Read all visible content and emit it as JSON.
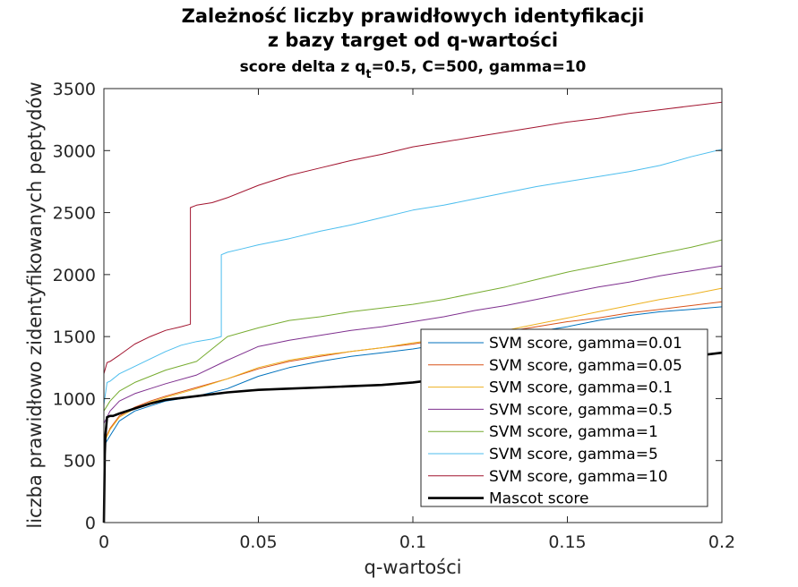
{
  "chart_data": {
    "type": "line",
    "title_lines": [
      "Zależność liczby prawidłowych identyfikacji",
      "z bazy target od q-wartości"
    ],
    "subtitle": {
      "prefix": "score delta z q",
      "subscript": "t",
      "suffix": "=0.5, C=500, gamma=10"
    },
    "xlabel": "q-wartości",
    "ylabel": "liczba prawidłowo zidentyfikowanych peptydów",
    "xlim": [
      0,
      0.2
    ],
    "ylim": [
      0,
      3500
    ],
    "xticks": [
      0,
      0.05,
      0.1,
      0.15,
      0.2
    ],
    "xtick_labels": [
      "0",
      "0.05",
      "0.1",
      "0.15",
      "0.2"
    ],
    "yticks": [
      0,
      500,
      1000,
      1500,
      2000,
      2500,
      3000,
      3500
    ],
    "ytick_labels": [
      "0",
      "500",
      "1000",
      "1500",
      "2000",
      "2500",
      "3000",
      "3500"
    ],
    "grid": false,
    "legend_position": "bottom-right",
    "series": [
      {
        "name": "SVM score, gamma=0.01",
        "color": "#0072bd",
        "width": 1,
        "x": [
          0,
          0.002,
          0.005,
          0.01,
          0.015,
          0.02,
          0.03,
          0.04,
          0.05,
          0.06,
          0.07,
          0.08,
          0.09,
          0.1,
          0.11,
          0.12,
          0.13,
          0.14,
          0.15,
          0.16,
          0.17,
          0.18,
          0.19,
          0.2
        ],
        "y": [
          620,
          700,
          820,
          900,
          940,
          980,
          1020,
          1080,
          1180,
          1250,
          1300,
          1340,
          1370,
          1400,
          1440,
          1470,
          1500,
          1540,
          1580,
          1630,
          1670,
          1700,
          1720,
          1740
        ]
      },
      {
        "name": "SVM score, gamma=0.05",
        "color": "#d95319",
        "width": 1,
        "x": [
          0,
          0.002,
          0.005,
          0.01,
          0.015,
          0.02,
          0.03,
          0.04,
          0.05,
          0.06,
          0.07,
          0.08,
          0.09,
          0.1,
          0.11,
          0.12,
          0.13,
          0.14,
          0.15,
          0.16,
          0.17,
          0.18,
          0.19,
          0.2
        ],
        "y": [
          650,
          760,
          860,
          930,
          980,
          1020,
          1090,
          1160,
          1240,
          1300,
          1340,
          1380,
          1410,
          1440,
          1480,
          1510,
          1540,
          1580,
          1620,
          1650,
          1690,
          1720,
          1750,
          1780
        ]
      },
      {
        "name": "SVM score, gamma=0.1",
        "color": "#edb120",
        "width": 1,
        "x": [
          0,
          0.002,
          0.005,
          0.01,
          0.015,
          0.02,
          0.03,
          0.04,
          0.05,
          0.06,
          0.07,
          0.08,
          0.09,
          0.1,
          0.11,
          0.12,
          0.13,
          0.14,
          0.15,
          0.16,
          0.17,
          0.18,
          0.19,
          0.2
        ],
        "y": [
          640,
          750,
          850,
          920,
          970,
          1010,
          1080,
          1160,
          1250,
          1310,
          1350,
          1380,
          1410,
          1450,
          1480,
          1510,
          1550,
          1600,
          1650,
          1700,
          1750,
          1800,
          1840,
          1890
        ]
      },
      {
        "name": "SVM score, gamma=0.5",
        "color": "#7e2f8e",
        "width": 1,
        "x": [
          0,
          0.002,
          0.005,
          0.01,
          0.015,
          0.02,
          0.03,
          0.04,
          0.05,
          0.06,
          0.07,
          0.08,
          0.09,
          0.1,
          0.11,
          0.12,
          0.13,
          0.14,
          0.15,
          0.16,
          0.17,
          0.18,
          0.19,
          0.2
        ],
        "y": [
          800,
          900,
          980,
          1040,
          1080,
          1120,
          1190,
          1310,
          1420,
          1470,
          1510,
          1550,
          1580,
          1620,
          1660,
          1710,
          1750,
          1800,
          1850,
          1900,
          1940,
          1990,
          2030,
          2070
        ]
      },
      {
        "name": "SVM score, gamma=1",
        "color": "#77ac30",
        "width": 1,
        "x": [
          0,
          0.002,
          0.005,
          0.01,
          0.015,
          0.02,
          0.03,
          0.04,
          0.05,
          0.06,
          0.07,
          0.08,
          0.09,
          0.1,
          0.11,
          0.12,
          0.13,
          0.14,
          0.15,
          0.16,
          0.17,
          0.18,
          0.19,
          0.2
        ],
        "y": [
          900,
          980,
          1060,
          1130,
          1180,
          1230,
          1300,
          1500,
          1570,
          1630,
          1660,
          1700,
          1730,
          1760,
          1800,
          1850,
          1900,
          1960,
          2020,
          2070,
          2120,
          2170,
          2220,
          2280
        ]
      },
      {
        "name": "SVM score, gamma=5",
        "color": "#4dbeee",
        "width": 1,
        "x": [
          0,
          0.001,
          0.002,
          0.005,
          0.01,
          0.015,
          0.02,
          0.025,
          0.03,
          0.035,
          0.038,
          0.038,
          0.04,
          0.045,
          0.05,
          0.06,
          0.07,
          0.08,
          0.09,
          0.1,
          0.11,
          0.12,
          0.13,
          0.14,
          0.15,
          0.16,
          0.17,
          0.18,
          0.19,
          0.2
        ],
        "y": [
          950,
          1130,
          1140,
          1200,
          1260,
          1320,
          1380,
          1430,
          1460,
          1480,
          1500,
          2160,
          2180,
          2210,
          2240,
          2290,
          2350,
          2400,
          2460,
          2520,
          2560,
          2610,
          2660,
          2710,
          2750,
          2790,
          2830,
          2880,
          2950,
          3010
        ]
      },
      {
        "name": "SVM score, gamma=10",
        "color": "#a2142f",
        "width": 1,
        "x": [
          0,
          0.001,
          0.002,
          0.005,
          0.01,
          0.015,
          0.02,
          0.025,
          0.028,
          0.028,
          0.03,
          0.035,
          0.04,
          0.05,
          0.06,
          0.07,
          0.08,
          0.09,
          0.1,
          0.11,
          0.12,
          0.13,
          0.14,
          0.15,
          0.16,
          0.17,
          0.18,
          0.19,
          0.2
        ],
        "y": [
          1200,
          1290,
          1300,
          1350,
          1440,
          1500,
          1550,
          1580,
          1600,
          2540,
          2560,
          2580,
          2620,
          2720,
          2800,
          2860,
          2920,
          2970,
          3030,
          3070,
          3110,
          3150,
          3190,
          3230,
          3260,
          3300,
          3330,
          3360,
          3390
        ]
      },
      {
        "name": "Mascot score",
        "color": "#000000",
        "width": 2.6,
        "x": [
          0,
          0.0003,
          0.0005,
          0.001,
          0.002,
          0.003,
          0.005,
          0.01,
          0.015,
          0.02,
          0.03,
          0.04,
          0.05,
          0.06,
          0.07,
          0.08,
          0.09,
          0.1,
          0.11,
          0.12,
          0.13,
          0.14,
          0.15,
          0.16,
          0.17,
          0.18,
          0.19,
          0.2
        ],
        "y": [
          0,
          550,
          700,
          850,
          860,
          860,
          880,
          920,
          960,
          990,
          1020,
          1050,
          1070,
          1080,
          1090,
          1100,
          1110,
          1130,
          1160,
          1190,
          1210,
          1240,
          1260,
          1280,
          1300,
          1320,
          1340,
          1370
        ]
      }
    ]
  }
}
